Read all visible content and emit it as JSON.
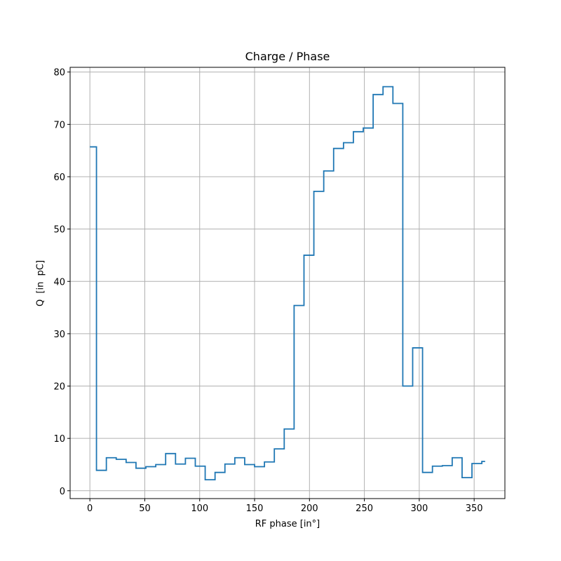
{
  "chart_data": {
    "type": "line",
    "style": "step",
    "title": "Charge / Phase",
    "xlabel": "RF phase [in°]",
    "ylabel": "Q  [in  pC]",
    "xlim": [
      -18,
      378
    ],
    "ylim": [
      -1.5,
      80.9
    ],
    "xticks": [
      0,
      50,
      100,
      150,
      200,
      250,
      300,
      350
    ],
    "yticks": [
      0,
      10,
      20,
      30,
      40,
      50,
      60,
      70,
      80
    ],
    "grid": true,
    "line_color": "#1f77b4",
    "series": [
      {
        "name": "Q",
        "x": [
          0,
          6,
          15,
          24,
          33,
          42,
          51,
          60,
          69,
          78,
          87,
          96,
          105,
          114,
          123,
          132,
          141,
          150,
          159,
          168,
          177,
          186,
          195,
          204,
          213,
          222,
          231,
          240,
          249,
          258,
          267,
          276,
          285,
          294,
          303,
          312,
          321,
          330,
          339,
          348,
          357,
          360
        ],
        "values": [
          65.7,
          3.9,
          6.3,
          6.0,
          5.4,
          4.3,
          4.6,
          5.0,
          7.1,
          5.1,
          6.2,
          4.7,
          2.1,
          3.5,
          5.1,
          6.3,
          5.0,
          4.6,
          5.5,
          8.0,
          11.8,
          35.4,
          45.0,
          57.2,
          61.1,
          65.4,
          66.5,
          68.6,
          69.3,
          75.7,
          77.2,
          74.0,
          20.0,
          27.3,
          3.5,
          4.7,
          4.8,
          6.3,
          2.5,
          5.2,
          5.6,
          5.6
        ]
      }
    ]
  }
}
